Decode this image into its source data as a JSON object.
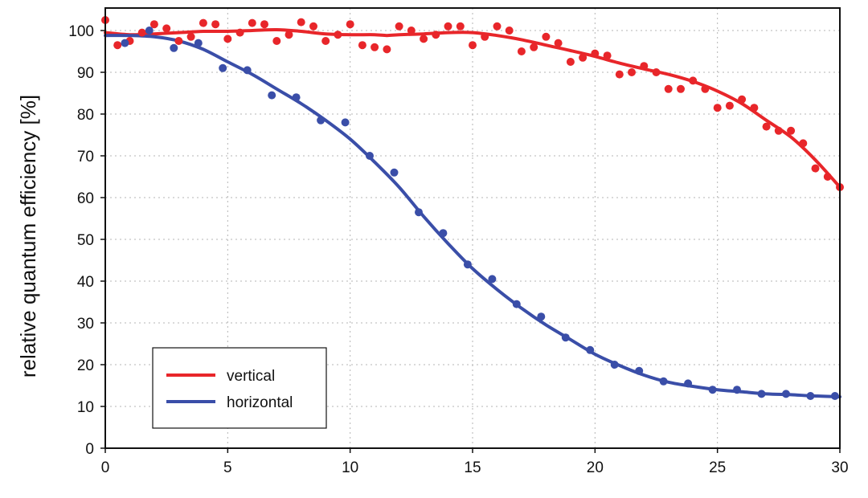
{
  "chart_data": {
    "type": "scatter",
    "title": "",
    "xlabel": "",
    "ylabel": "relative quantum efficiency [%]",
    "xlim": [
      0,
      30
    ],
    "ylim": [
      0,
      105
    ],
    "xticks": [
      "0",
      "5",
      "10",
      "15",
      "20",
      "25",
      "30"
    ],
    "yticks": [
      "0",
      "10",
      "20",
      "30",
      "40",
      "50",
      "60",
      "70",
      "80",
      "90",
      "100"
    ],
    "grid": true,
    "legend_position": "bottom-left",
    "series": [
      {
        "name": "vertical",
        "color": "#e8262a",
        "points": [
          [
            0,
            102.5
          ],
          [
            0.5,
            96.5
          ],
          [
            1,
            97.5
          ],
          [
            1.5,
            99.5
          ],
          [
            2,
            101.5
          ],
          [
            2.5,
            100.5
          ],
          [
            3,
            97.5
          ],
          [
            3.5,
            98.5
          ],
          [
            4,
            101.8
          ],
          [
            4.5,
            101.5
          ],
          [
            5,
            98
          ],
          [
            5.5,
            99.5
          ],
          [
            6,
            101.8
          ],
          [
            6.5,
            101.5
          ],
          [
            7,
            97.5
          ],
          [
            7.5,
            99
          ],
          [
            8,
            102
          ],
          [
            8.5,
            101
          ],
          [
            9,
            97.5
          ],
          [
            9.5,
            99
          ],
          [
            10,
            101.5
          ],
          [
            10.5,
            96.5
          ],
          [
            11,
            96
          ],
          [
            11.5,
            95.5
          ],
          [
            12,
            101
          ],
          [
            12.5,
            100
          ],
          [
            13,
            98
          ],
          [
            13.5,
            99
          ],
          [
            14,
            101
          ],
          [
            14.5,
            101
          ],
          [
            15,
            96.5
          ],
          [
            15.5,
            98.5
          ],
          [
            16,
            101
          ],
          [
            16.5,
            100
          ],
          [
            17,
            95
          ],
          [
            17.5,
            96
          ],
          [
            18,
            98.5
          ],
          [
            18.5,
            97
          ],
          [
            19,
            92.5
          ],
          [
            19.5,
            93.5
          ],
          [
            20,
            94.5
          ],
          [
            20.5,
            94
          ],
          [
            21,
            89.5
          ],
          [
            21.5,
            90
          ],
          [
            22,
            91.5
          ],
          [
            22.5,
            90
          ],
          [
            23,
            86
          ],
          [
            23.5,
            86
          ],
          [
            24,
            88
          ],
          [
            24.5,
            86
          ],
          [
            25,
            81.5
          ],
          [
            25.5,
            82
          ],
          [
            26,
            83.5
          ],
          [
            26.5,
            81.5
          ],
          [
            27,
            77
          ],
          [
            27.5,
            76
          ],
          [
            28,
            76
          ],
          [
            28.5,
            73
          ],
          [
            29,
            67
          ],
          [
            29.5,
            65
          ],
          [
            30,
            62.5
          ]
        ],
        "fit": [
          [
            0,
            99.5
          ],
          [
            1,
            99
          ],
          [
            2,
            99.2
          ],
          [
            3,
            99.5
          ],
          [
            4,
            99.8
          ],
          [
            5,
            99.8
          ],
          [
            6,
            100
          ],
          [
            7,
            100.2
          ],
          [
            8,
            99.8
          ],
          [
            9,
            99.2
          ],
          [
            10,
            99
          ],
          [
            11,
            99
          ],
          [
            11.5,
            98.8
          ],
          [
            12,
            99
          ],
          [
            13,
            99.2
          ],
          [
            14,
            99.5
          ],
          [
            15,
            99.5
          ],
          [
            16,
            98.8
          ],
          [
            17,
            97.8
          ],
          [
            18,
            96.5
          ],
          [
            19,
            95.2
          ],
          [
            20,
            93.8
          ],
          [
            21,
            92.2
          ],
          [
            22,
            90.8
          ],
          [
            23,
            89.5
          ],
          [
            24,
            87.8
          ],
          [
            25,
            85.5
          ],
          [
            26,
            82.5
          ],
          [
            27,
            78.5
          ],
          [
            28,
            74.5
          ],
          [
            29,
            69
          ],
          [
            30,
            62.5
          ]
        ]
      },
      {
        "name": "horizontal",
        "color": "#3a4ea8",
        "points": [
          [
            0.8,
            97
          ],
          [
            1.8,
            100
          ],
          [
            2.8,
            95.8
          ],
          [
            3.8,
            97
          ],
          [
            4.8,
            91
          ],
          [
            5.8,
            90.5
          ],
          [
            6.8,
            84.5
          ],
          [
            7.8,
            84
          ],
          [
            8.8,
            78.5
          ],
          [
            9.8,
            78
          ],
          [
            10.8,
            70
          ],
          [
            11.8,
            66
          ],
          [
            12.8,
            56.5
          ],
          [
            13.8,
            51.5
          ],
          [
            14.8,
            44
          ],
          [
            15.8,
            40.5
          ],
          [
            16.8,
            34.5
          ],
          [
            17.8,
            31.5
          ],
          [
            18.8,
            26.5
          ],
          [
            19.8,
            23.5
          ],
          [
            20.8,
            20
          ],
          [
            21.8,
            18.5
          ],
          [
            22.8,
            16
          ],
          [
            23.8,
            15.5
          ],
          [
            24.8,
            14
          ],
          [
            25.8,
            14
          ],
          [
            26.8,
            13
          ],
          [
            27.8,
            13
          ],
          [
            28.8,
            12.5
          ],
          [
            29.8,
            12.5
          ]
        ],
        "fit": [
          [
            0,
            98.8
          ],
          [
            1,
            98.8
          ],
          [
            2,
            98.5
          ],
          [
            3,
            97.5
          ],
          [
            4,
            95.5
          ],
          [
            5,
            92.5
          ],
          [
            6,
            89.5
          ],
          [
            7,
            86
          ],
          [
            8,
            82.5
          ],
          [
            9,
            78.5
          ],
          [
            10,
            74
          ],
          [
            11,
            68.5
          ],
          [
            12,
            62.5
          ],
          [
            13,
            55.5
          ],
          [
            14,
            49
          ],
          [
            15,
            43
          ],
          [
            16,
            38
          ],
          [
            17,
            33.5
          ],
          [
            18,
            29.5
          ],
          [
            19,
            26
          ],
          [
            20,
            22.5
          ],
          [
            21,
            19.8
          ],
          [
            22,
            17.5
          ],
          [
            23,
            15.8
          ],
          [
            24,
            14.8
          ],
          [
            25,
            14
          ],
          [
            26,
            13.5
          ],
          [
            27,
            13
          ],
          [
            28,
            12.8
          ],
          [
            29,
            12.5
          ],
          [
            30,
            12.3
          ]
        ]
      }
    ]
  }
}
